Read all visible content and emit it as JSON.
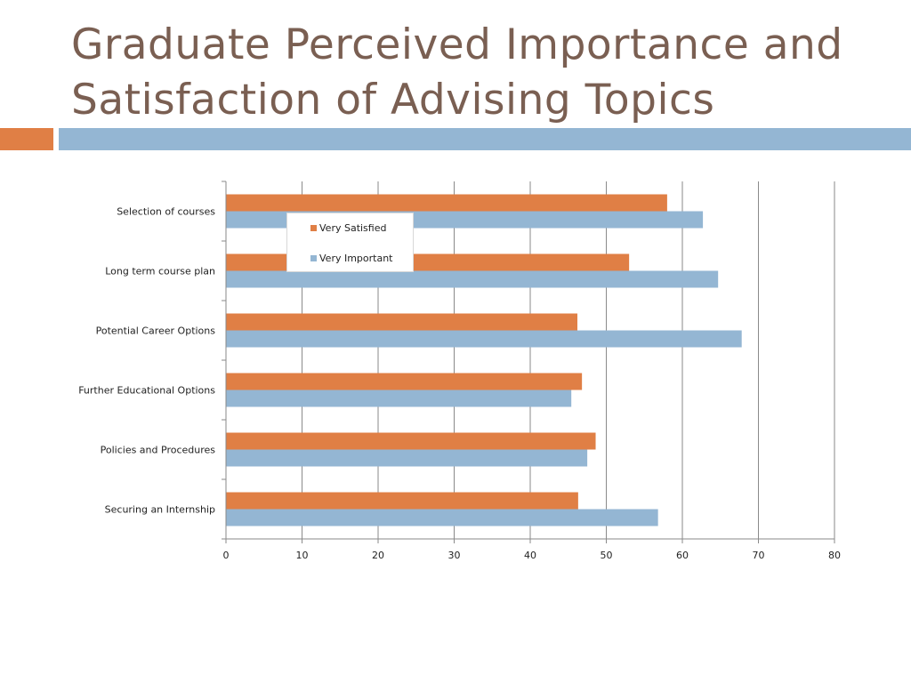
{
  "slide": {
    "title": "Graduate Perceived Importance and Satisfaction of Advising Topics",
    "title_color": "#7a5f52",
    "accent_orange": "#e07f45",
    "accent_blue": "#94b6d3"
  },
  "chart_data": {
    "type": "bar",
    "orientation": "horizontal",
    "categories": [
      "Selection of courses",
      "Long term course plan",
      "Potential Career Options",
      "Further Educational Options",
      "Policies and Procedures",
      "Securing an Internship"
    ],
    "series": [
      {
        "name": "Very Satisfied",
        "color": "#e07f45",
        "values": [
          58,
          53,
          46.2,
          46.8,
          48.6,
          46.3
        ]
      },
      {
        "name": "Very Important",
        "color": "#94b6d3",
        "values": [
          62.7,
          64.7,
          67.8,
          45.4,
          47.5,
          56.8
        ]
      }
    ],
    "xlim": [
      0,
      80
    ],
    "xticks": [
      0,
      10,
      20,
      30,
      40,
      50,
      60,
      70,
      80
    ],
    "grid": true,
    "legend_position": "top-left, overlapping plot"
  }
}
